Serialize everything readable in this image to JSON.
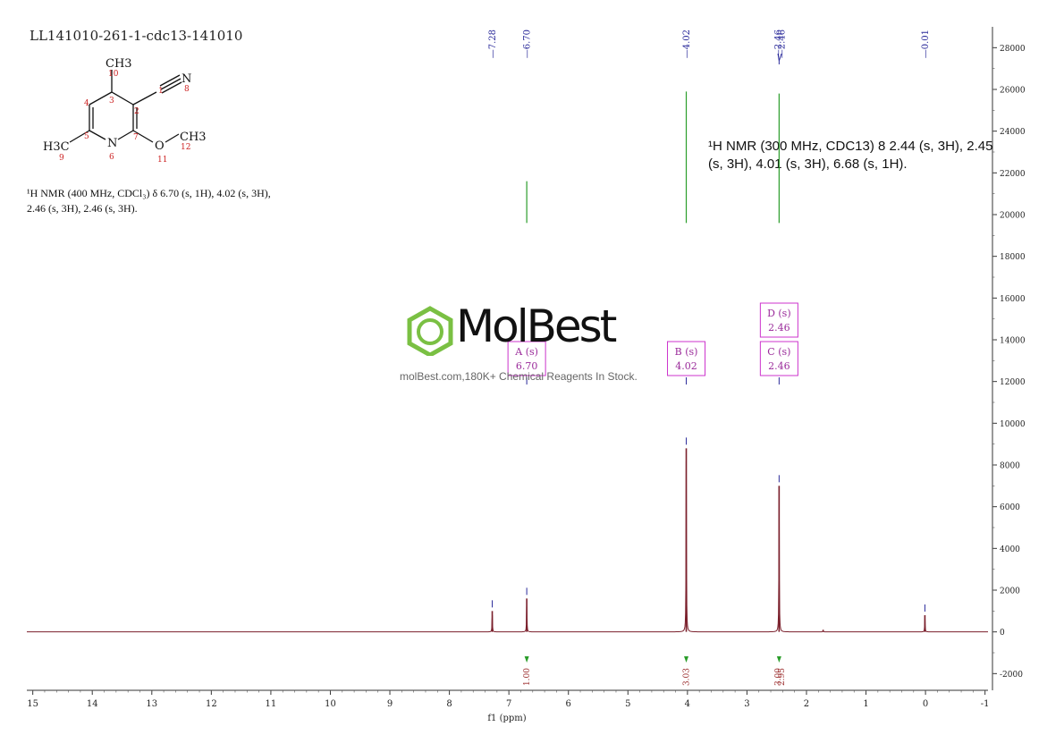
{
  "title": "LL141010-261-1-cdc13-141010",
  "nmr_left": "¹H NMR (400 MHz, CDCl₃) δ 6.70 (s, 1H), 4.02 (s, 3H), 2.46 (s, 3H), 2.46 (s, 3H).",
  "nmr_right": "¹H NMR (300 MHz, CDC13) 8 2.44 (s, 3H), 2.45 (s, 3H), 4.01 (s, 3H), 6.68 (s, 1H).",
  "watermark": {
    "brand": "MolBest",
    "tagline": "molBest.com,180K+ Chemical Reagents In Stock."
  },
  "structure": {
    "atoms": [
      "CH3",
      "N",
      "H3C",
      "N",
      "O",
      "CH3"
    ],
    "numbers": [
      "10",
      "1",
      "8",
      "3",
      "2",
      "4",
      "5",
      "7",
      "9",
      "6",
      "11",
      "12"
    ]
  },
  "chart_data": {
    "type": "line",
    "xlabel": "f1 (ppm)",
    "xlim": [
      15.1,
      -1.05
    ],
    "ylim": [
      -2800,
      29000
    ],
    "x_ticks": [
      15,
      14,
      13,
      12,
      11,
      10,
      9,
      8,
      7,
      6,
      5,
      4,
      3,
      2,
      1,
      0,
      -1
    ],
    "y_ticks": [
      -2000,
      0,
      2000,
      4000,
      6000,
      8000,
      10000,
      12000,
      14000,
      16000,
      18000,
      20000,
      22000,
      24000,
      26000,
      28000
    ],
    "peak_labels": [
      "7.28",
      "6.70",
      "4.02",
      "2.46",
      "2.46",
      "0.01"
    ],
    "peaks": [
      {
        "x": 7.28,
        "y": 1000
      },
      {
        "x": 6.7,
        "y": 1600
      },
      {
        "x": 4.02,
        "y": 8800
      },
      {
        "x": 2.46,
        "y": 7000
      },
      {
        "x": 1.72,
        "y": 100
      },
      {
        "x": 0.01,
        "y": 800
      }
    ],
    "multiplets": [
      {
        "label": "A (s)",
        "shift": "6.70",
        "x": 6.7
      },
      {
        "label": "B (s)",
        "shift": "4.02",
        "x": 4.02
      },
      {
        "label": "C (s)",
        "shift": "2.46",
        "x": 2.46
      },
      {
        "label": "D (s)",
        "shift": "2.46",
        "x": 2.46
      }
    ],
    "integrations": [
      {
        "x": 6.7,
        "value": "1.00"
      },
      {
        "x": 4.02,
        "value": "3.03"
      },
      {
        "x": 2.48,
        "value": "3.00"
      },
      {
        "x": 2.42,
        "value": "2.95"
      }
    ],
    "integral_curves": [
      {
        "x": 6.7,
        "y_from": 19600,
        "y_to": 21600
      },
      {
        "x": 4.02,
        "y_from": 19600,
        "y_to": 25900
      },
      {
        "x": 2.46,
        "y_from": 19600,
        "y_to": 25800
      }
    ],
    "colors": {
      "spectrum": "#7a1f2b",
      "integral": "#2a9d2a",
      "marker": "#2a2a9a",
      "box": "#cc33cc"
    }
  }
}
